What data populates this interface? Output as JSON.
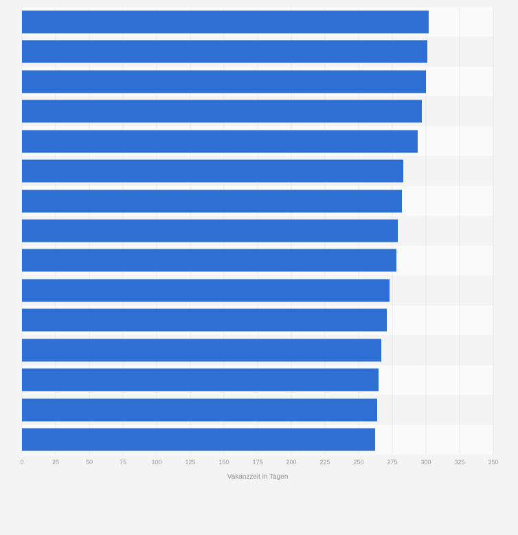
{
  "page": {
    "background_color": "#f4f4f4"
  },
  "chart_data": {
    "type": "bar",
    "orientation": "horizontal",
    "title": "",
    "xlabel": "Vakanzzeit in Tagen",
    "ylabel": "",
    "values": [
      302,
      301,
      300,
      297,
      294,
      283,
      282,
      279,
      278,
      273,
      271,
      267,
      265,
      264,
      262
    ],
    "xlim": [
      0,
      350
    ],
    "xticks": [
      0,
      25,
      50,
      75,
      100,
      125,
      150,
      175,
      200,
      225,
      250,
      275,
      300,
      325,
      350
    ],
    "bar_color": "#2e6fd3",
    "grid": true,
    "legend": false,
    "category_labels_visible": false
  }
}
